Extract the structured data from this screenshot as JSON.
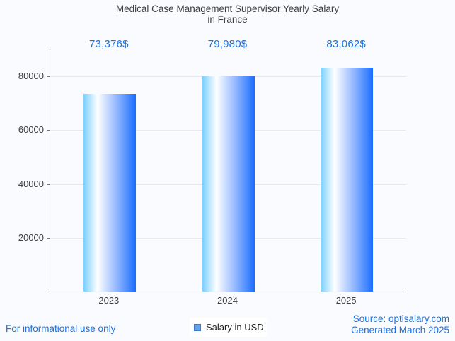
{
  "page": {
    "background": "#fafbfe",
    "footer_left": "For informational use only",
    "footer_right_line1": "Source: optisalary.com",
    "footer_right_line2": "Generated March 2025",
    "link_color": "#1a73e8"
  },
  "chart_data": {
    "type": "bar",
    "title": "Medical Case Management Supervisor Yearly Salary in France",
    "title_lines": [
      "Medical Case Management Supervisor Yearly Salary",
      "in France"
    ],
    "categories": [
      "2023",
      "2024",
      "2025"
    ],
    "values": [
      73376,
      79980,
      83062
    ],
    "value_labels": [
      "73,376$",
      "79,980$",
      "83,062$"
    ],
    "series": [
      {
        "name": "Salary in USD",
        "values": [
          73376,
          79980,
          83062
        ]
      }
    ],
    "legend_label": "Salary in USD",
    "xlabel": "",
    "ylabel": "",
    "ylim": [
      0,
      90000
    ],
    "yticks": [
      20000,
      40000,
      60000,
      80000
    ],
    "grid": true,
    "legend_position": "bottom",
    "colors": {
      "value_label": "#1a73e8",
      "title": "#404040",
      "axis": "#757575",
      "gridline": "#e7e9ee",
      "tick_text": "#3c4043",
      "bar_gradient_left": "#7acfff",
      "bar_gradient_mid": "#ffffff",
      "bar_gradient_right": "#1a6dff",
      "legend_swatch_fill": "#68a2e6",
      "legend_swatch_border": "#3d7ac9"
    }
  }
}
